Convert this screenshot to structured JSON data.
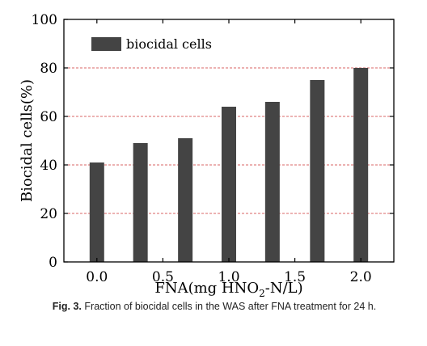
{
  "chart_data": {
    "type": "bar",
    "x": [
      0.0,
      0.33,
      0.67,
      1.0,
      1.33,
      1.67,
      2.0
    ],
    "values": [
      41,
      49,
      51,
      64,
      66,
      75,
      80
    ],
    "xlim": [
      -0.25,
      2.25
    ],
    "ylim": [
      0,
      100
    ],
    "xticks": [
      "0.0",
      "0.5",
      "1.0",
      "1.5",
      "2.0"
    ],
    "xtick_values": [
      0.0,
      0.5,
      1.0,
      1.5,
      2.0
    ],
    "yticks": [
      "0",
      "20",
      "40",
      "60",
      "80",
      "100"
    ],
    "ytick_values": [
      0,
      20,
      40,
      60,
      80,
      100
    ],
    "xlabel": "FNA(mg HNO",
    "xlabel_sub": "2",
    "xlabel_tail": "-N/L)",
    "ylabel": "Biocidal cells(%)",
    "legend": {
      "label": "biocidal cells",
      "placement": "top-left"
    },
    "grid": {
      "y": true,
      "style": "dashed"
    },
    "colors": {
      "bar": "#444444",
      "grid": "#cc3333",
      "axis": "#000000"
    }
  },
  "caption": {
    "label": "Fig. 3.",
    "text": "Fraction of biocidal cells in the WAS after FNA treatment for 24 h."
  }
}
